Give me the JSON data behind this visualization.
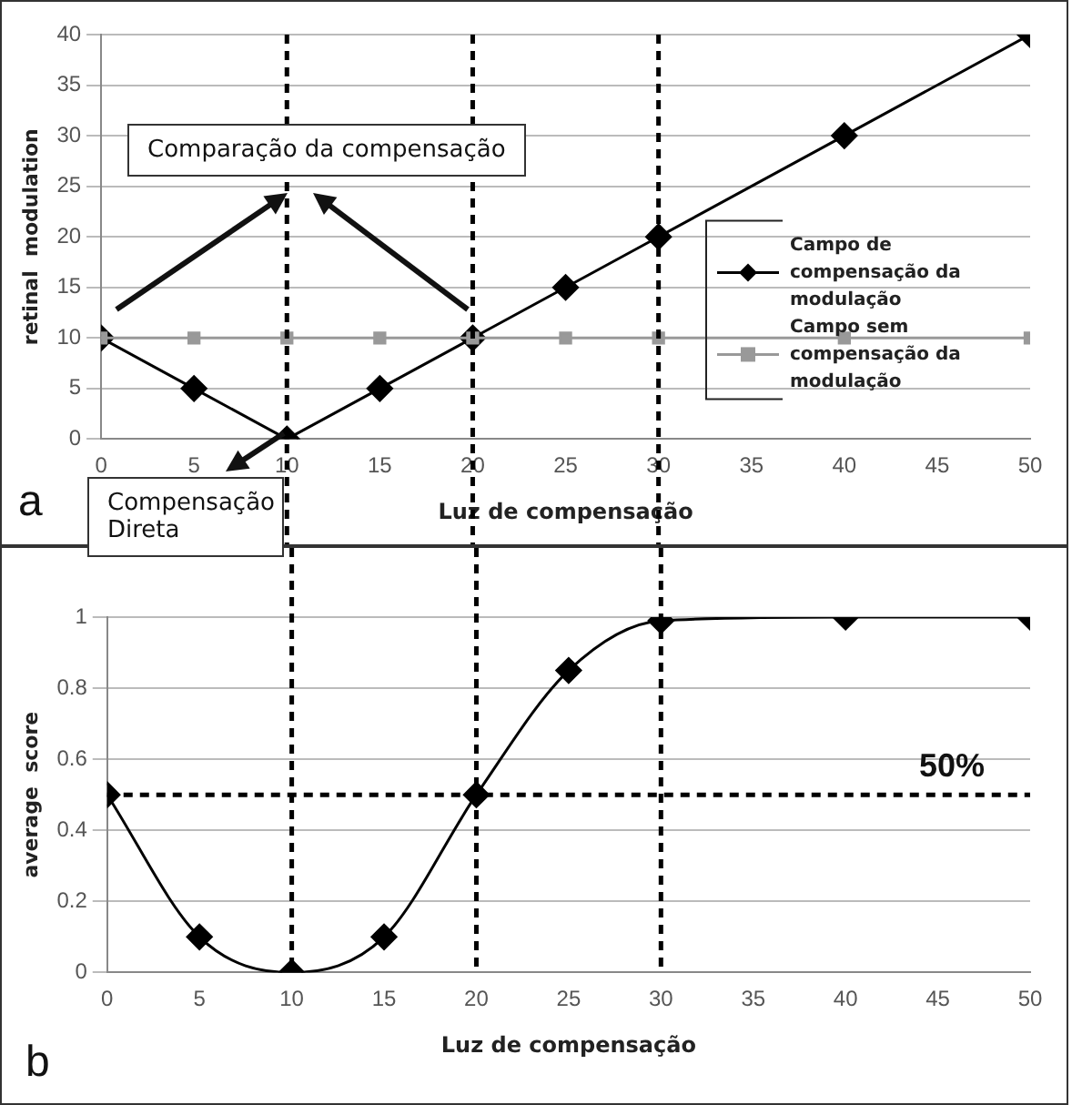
{
  "chart_data": [
    {
      "type": "line",
      "xlabel": "Luz de compensação",
      "ylabel": "retinal  modulation",
      "x": [
        0,
        5,
        10,
        15,
        20,
        25,
        30,
        40,
        50
      ],
      "series": [
        {
          "name": "Campo de compensação da modulação",
          "color": "#000000",
          "marker": "diamond",
          "values": [
            10,
            5,
            0,
            5,
            10,
            15,
            20,
            30,
            40
          ]
        },
        {
          "name": "Campo sem compensação da modulação",
          "color": "#999999",
          "marker": "square",
          "values": [
            10,
            10,
            10,
            10,
            10,
            10,
            10,
            10,
            10
          ]
        }
      ],
      "xlim": [
        0,
        50
      ],
      "xticks": [
        0,
        5,
        10,
        15,
        20,
        25,
        30,
        35,
        40,
        45,
        50
      ],
      "ylim": [
        0,
        40
      ],
      "yticks": [
        0,
        5,
        10,
        15,
        20,
        25,
        30,
        35,
        40
      ],
      "grid": "y",
      "legend": "right",
      "line_style": "solid",
      "ref_lines": [
        {
          "axis": "x",
          "value": 10,
          "line_style": "dashed"
        },
        {
          "axis": "x",
          "value": 20,
          "line_style": "dashed"
        },
        {
          "axis": "x",
          "value": 30,
          "line_style": "dashed"
        }
      ],
      "annotations": [
        "Comparação da compensação",
        "Compensação Direta",
        "a"
      ]
    },
    {
      "type": "line",
      "xlabel": "Luz de compensação",
      "ylabel": "average  score",
      "x": [
        0,
        5,
        10,
        15,
        20,
        25,
        30,
        40,
        50
      ],
      "series": [
        {
          "color": "#000000",
          "marker": "diamond",
          "values": [
            0.5,
            0.1,
            0,
            0.1,
            0.5,
            0.85,
            0.99,
            1,
            1
          ]
        }
      ],
      "xlim": [
        0,
        50
      ],
      "xticks": [
        0,
        5,
        10,
        15,
        20,
        25,
        30,
        35,
        40,
        45,
        50
      ],
      "ylim": [
        0,
        1
      ],
      "yticks": [
        0,
        0.2,
        0.4,
        0.6,
        0.8,
        1
      ],
      "grid": "y",
      "line_style": "solid",
      "ref_lines": [
        {
          "axis": "y",
          "value": 0.5,
          "label": "50%",
          "line_style": "dashed"
        },
        {
          "axis": "x",
          "value": 10,
          "line_style": "dashed"
        },
        {
          "axis": "x",
          "value": 20,
          "line_style": "dashed"
        },
        {
          "axis": "x",
          "value": 30,
          "line_style": "dashed"
        }
      ],
      "annotations": [
        "b"
      ]
    }
  ]
}
